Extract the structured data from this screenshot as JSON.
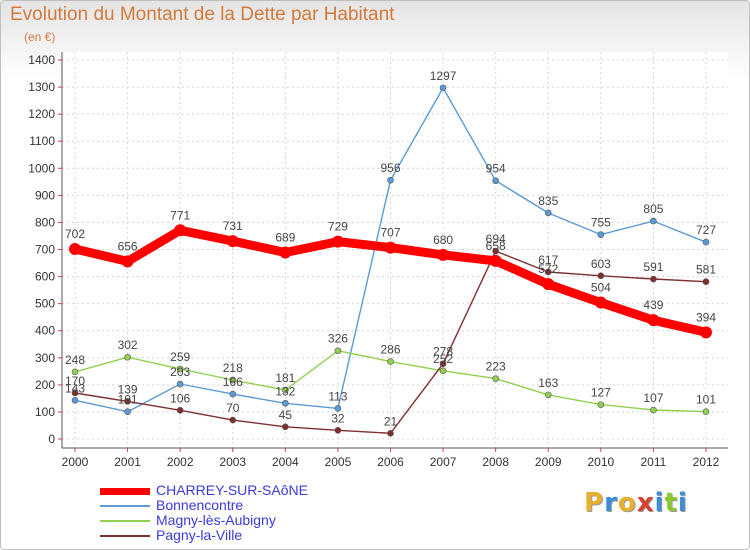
{
  "title": "Evolution du Montant de la Dette par Habitant",
  "subtitle": "(en €)",
  "logo": {
    "letters": [
      "P",
      "r",
      "o",
      "x",
      "i",
      "t",
      "i"
    ],
    "colors": [
      "#e8b030",
      "#3a8ed8",
      "#e8b030",
      "#d84030",
      "#3a8ed8",
      "#8cc830",
      "#3a8ed8"
    ]
  },
  "chart_data": {
    "type": "line",
    "title": "Evolution du Montant de la Dette par Habitant",
    "ylabel": "(en €)",
    "x": [
      "2000",
      "2001",
      "2002",
      "2003",
      "2004",
      "2005",
      "2006",
      "2007",
      "2008",
      "2009",
      "2010",
      "2011",
      "2012"
    ],
    "ylim": [
      0,
      1400
    ],
    "yticks": [
      "0",
      "100",
      "200",
      "300",
      "400",
      "500",
      "600",
      "700",
      "800",
      "900",
      "1000",
      "1100",
      "1200",
      "1300",
      "1400"
    ],
    "grid": true,
    "legend_position": "bottom-left",
    "series": [
      {
        "name": "CHARREY-SUR-SAôNE",
        "color": "#ff0000",
        "values": [
          702,
          656,
          771,
          731,
          689,
          729,
          707,
          680,
          658,
          572,
          504,
          439,
          394
        ],
        "labels": [
          "702",
          "656",
          "771",
          "731",
          "689",
          "729",
          "707",
          "680",
          "658",
          "572",
          "504",
          "439",
          "394"
        ]
      },
      {
        "name": "Bonnencontre",
        "color": "#5b9bd5",
        "values": [
          143,
          101,
          203,
          166,
          132,
          113,
          956,
          1297,
          954,
          835,
          755,
          805,
          727
        ],
        "labels": [
          "143",
          "101",
          "203",
          "166",
          "132",
          "113",
          "956",
          "1297",
          "954",
          "835",
          "755",
          "805",
          "727"
        ]
      },
      {
        "name": "Magny-lès-Aubigny",
        "color": "#92d050",
        "values": [
          248,
          302,
          259,
          218,
          181,
          326,
          286,
          252,
          223,
          163,
          127,
          107,
          101
        ],
        "labels": [
          "248",
          "302",
          "259",
          "218",
          "181",
          "326",
          "286",
          "252",
          "223",
          "163",
          "127",
          "107",
          "101"
        ]
      },
      {
        "name": "Pagny-la-Ville",
        "color": "#7f2f2f",
        "values": [
          170,
          139,
          106,
          70,
          45,
          32,
          21,
          278,
          694,
          617,
          603,
          591,
          581
        ],
        "labels": [
          "170",
          "139",
          "106",
          "70",
          "45",
          "32",
          "21",
          "278",
          "694",
          "617",
          "603",
          "591",
          "581"
        ]
      }
    ]
  }
}
